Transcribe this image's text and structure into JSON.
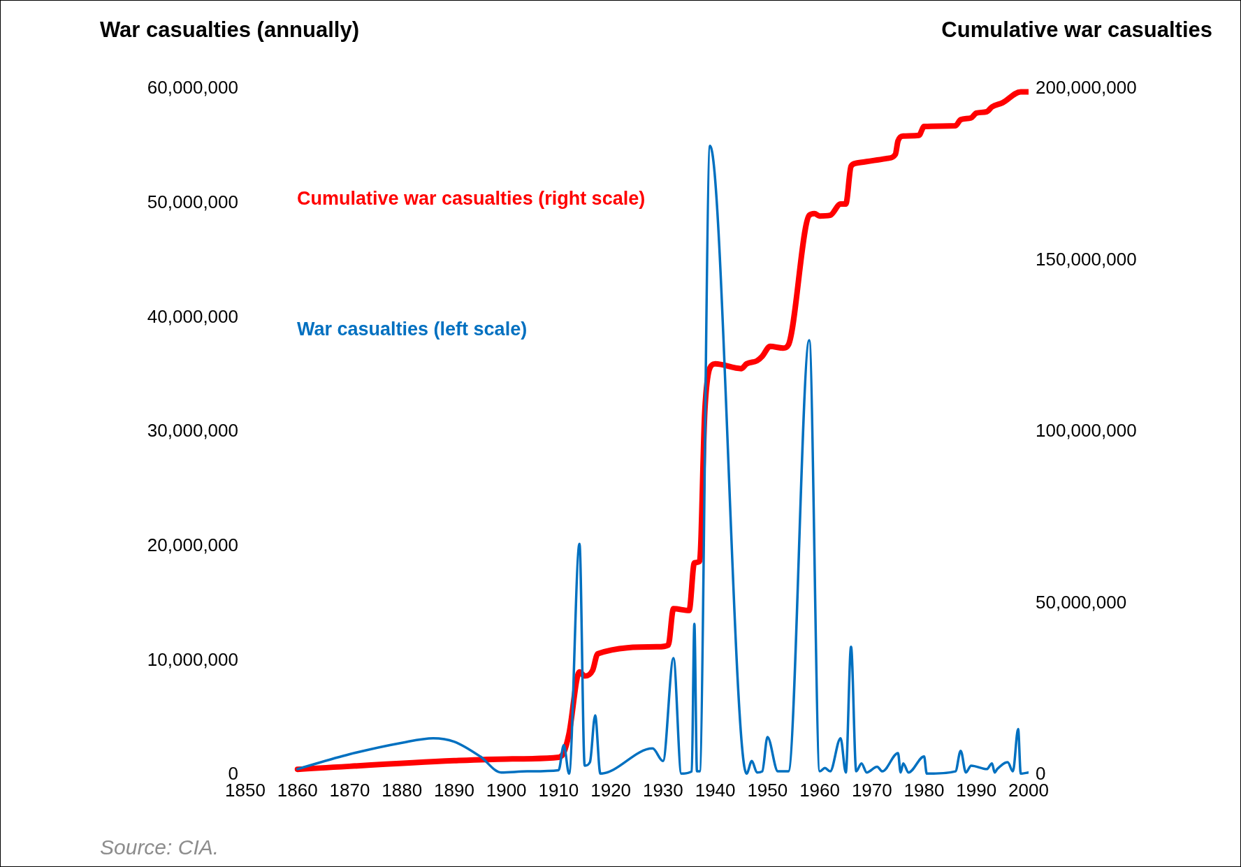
{
  "chart_data": {
    "type": "line",
    "ylabel": "War casualties (annually)",
    "y2label": "Cumulative war casualties",
    "annotations": [
      "Source: CIA."
    ],
    "xlim": [
      1850,
      2000
    ],
    "xticks": [
      1850,
      1860,
      1870,
      1880,
      1890,
      1900,
      1910,
      1920,
      1930,
      1940,
      1950,
      1960,
      1970,
      1980,
      1990,
      2000
    ],
    "ylim": [
      0,
      60000000
    ],
    "yticks": [
      {
        "value": 0,
        "label": "0"
      },
      {
        "value": 10000000,
        "label": "10,000,000"
      },
      {
        "value": 20000000,
        "label": "20,000,000"
      },
      {
        "value": 30000000,
        "label": "30,000,000"
      },
      {
        "value": 40000000,
        "label": "40,000,000"
      },
      {
        "value": 50000000,
        "label": "50,000,000"
      },
      {
        "value": 60000000,
        "label": "60,000,000"
      }
    ],
    "y2lim": [
      0,
      200000000
    ],
    "y2ticks": [
      {
        "value": 0,
        "label": "0"
      },
      {
        "value": 50000000,
        "label": "50,000,000"
      },
      {
        "value": 100000000,
        "label": "100,000,000"
      },
      {
        "value": 150000000,
        "label": "150,000,000"
      },
      {
        "value": 200000000,
        "label": "200,000,000"
      }
    ],
    "grid": false,
    "legend": false,
    "marker": "none",
    "line_style": "solid",
    "series": [
      {
        "name": "War casualties (left scale)",
        "color": "#0070c0",
        "x": [
          1860,
          1870,
          1880,
          1886,
          1890,
          1895,
          1899,
          1904,
          1910,
          1911,
          1912,
          1914,
          1915,
          1916,
          1917,
          1918,
          1928,
          1930,
          1932,
          1933.5,
          1935.5,
          1936,
          1936.5,
          1937,
          1939,
          1946,
          1947,
          1948,
          1949,
          1950,
          1952,
          1954,
          1958,
          1960,
          1961,
          1962,
          1964,
          1965,
          1966,
          1967,
          1968,
          1969,
          1971,
          1972,
          1975,
          1975.5,
          1976,
          1977,
          1980,
          1980.5,
          1986,
          1987,
          1988,
          1989,
          1992,
          1993,
          1993.5,
          1994,
          1996,
          1997,
          1998,
          1998.5,
          2000
        ],
        "values": [
          500000,
          1800000,
          2800000,
          3200000,
          2900000,
          1600000,
          200000,
          300000,
          400000,
          2600000,
          100000,
          20200000,
          800000,
          1100000,
          5200000,
          100000,
          2300000,
          1200000,
          10200000,
          100000,
          300000,
          13200000,
          300000,
          300000,
          55000000,
          100000,
          1200000,
          200000,
          300000,
          3300000,
          300000,
          300000,
          38000000,
          300000,
          600000,
          300000,
          3200000,
          200000,
          11200000,
          300000,
          1000000,
          200000,
          700000,
          300000,
          1900000,
          200000,
          1000000,
          200000,
          1600000,
          100000,
          300000,
          2100000,
          200000,
          800000,
          500000,
          1000000,
          200000,
          500000,
          1100000,
          300000,
          4000000,
          100000,
          200000
        ]
      },
      {
        "name": "Cumulative war casualties (right scale)",
        "color": "#ff0000",
        "axis": "y2",
        "x": [
          1860,
          1890,
          1900,
          1910,
          1911,
          1912,
          1914,
          1915,
          1916.5,
          1917.5,
          1929,
          1931,
          1932,
          1935,
          1936,
          1937,
          1938,
          1939,
          1940,
          1945,
          1946,
          1948,
          1949,
          1950.5,
          1953,
          1954,
          1958,
          1959,
          1960,
          1962,
          1964,
          1965,
          1966,
          1967,
          1970,
          1973,
          1974.5,
          1975,
          1976,
          1979,
          1980,
          1986,
          1987,
          1989,
          1990,
          1992,
          1993,
          1995,
          1998.5,
          2000
        ],
        "values": [
          1600000,
          4100000,
          4600000,
          5100000,
          6500000,
          12000000,
          30000000,
          28800000,
          30400000,
          35300000,
          37300000,
          37800000,
          48400000,
          47900000,
          61800000,
          62200000,
          106000000,
          118700000,
          119800000,
          118400000,
          119800000,
          120700000,
          122000000,
          124900000,
          124400000,
          125300000,
          163100000,
          163600000,
          162900000,
          163100000,
          166400000,
          166400000,
          177400000,
          178300000,
          179000000,
          179700000,
          180900000,
          184800000,
          186200000,
          186400000,
          189000000,
          189200000,
          191000000,
          191500000,
          192900000,
          193300000,
          194700000,
          195900000,
          199100000,
          199100000
        ]
      }
    ]
  }
}
